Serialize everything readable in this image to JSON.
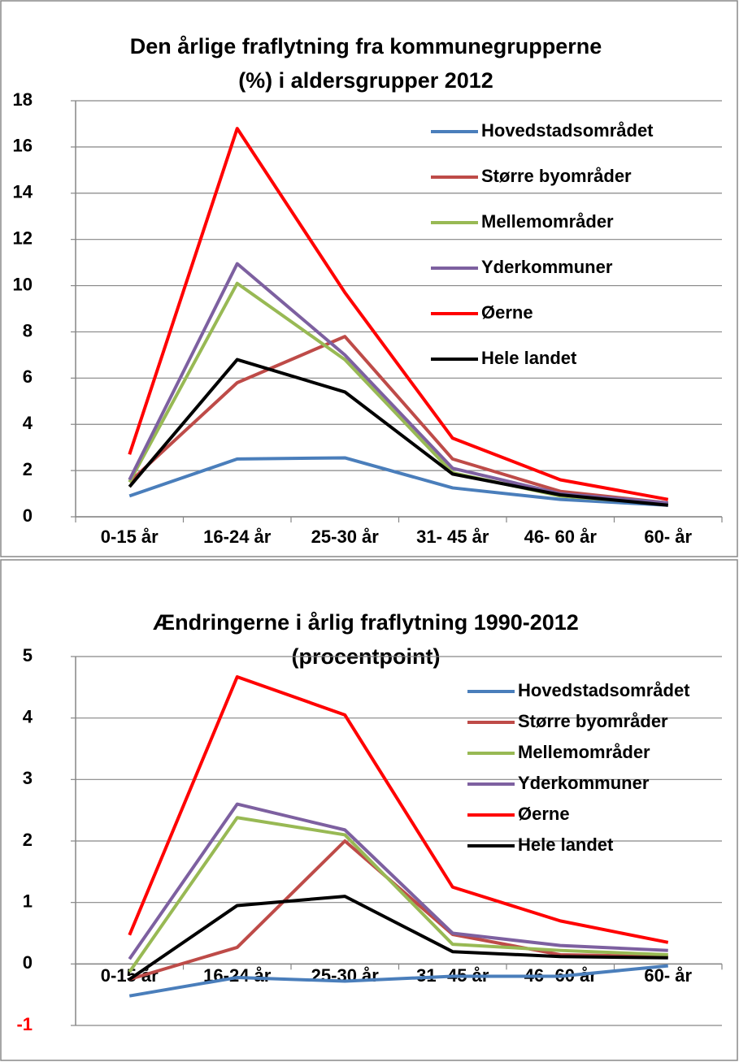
{
  "chart_data": [
    {
      "type": "line",
      "title": [
        "Den årlige fraflytning fra kommunegrupperne",
        "(%) i aldersgrupper 2012"
      ],
      "categories": [
        "0-15 år",
        "16-24 år",
        "25-30 år",
        "31- 45 år",
        "46- 60 år",
        "60- år"
      ],
      "ylim": [
        0,
        18
      ],
      "yticks": [
        0,
        2,
        4,
        6,
        8,
        10,
        12,
        14,
        16,
        18
      ],
      "grid": true,
      "series": [
        {
          "name": "Hovedstadsområdet",
          "color": "#4a7ebb",
          "values": [
            0.9,
            2.5,
            2.55,
            1.25,
            0.75,
            0.5
          ]
        },
        {
          "name": "Større byområder",
          "color": "#be4b48",
          "values": [
            1.5,
            5.8,
            7.8,
            2.5,
            1.1,
            0.6
          ]
        },
        {
          "name": "Mellemområder",
          "color": "#98b954",
          "values": [
            1.5,
            10.1,
            6.8,
            1.9,
            0.9,
            0.55
          ]
        },
        {
          "name": "Yderkommuner",
          "color": "#7d60a0",
          "values": [
            1.6,
            10.95,
            7.0,
            2.1,
            1.0,
            0.6
          ]
        },
        {
          "name": "Øerne",
          "color": "#ff0000",
          "values": [
            2.7,
            16.8,
            9.7,
            3.4,
            1.6,
            0.75
          ]
        },
        {
          "name": "Hele landet",
          "color": "#000000",
          "values": [
            1.3,
            6.8,
            5.4,
            1.85,
            0.95,
            0.5
          ]
        }
      ]
    },
    {
      "type": "line",
      "title": [
        "Ændringerne i årlig fraflytning 1990-2012",
        "(procentpoint)"
      ],
      "categories": [
        "0-15 år",
        "16-24 år",
        "25-30 år",
        "31- 45 år",
        "46- 60 år",
        "60- år"
      ],
      "ylim": [
        -1,
        5
      ],
      "yticks": [
        -1,
        0,
        1,
        2,
        3,
        4,
        5
      ],
      "ytick_colors": [
        "#ff0000",
        "#000000",
        "#000000",
        "#000000",
        "#000000",
        "#000000",
        "#000000"
      ],
      "grid": true,
      "series": [
        {
          "name": "Hovedstadsområdet",
          "color": "#4a7ebb",
          "values": [
            -0.52,
            -0.22,
            -0.28,
            -0.2,
            -0.2,
            -0.03
          ]
        },
        {
          "name": "Større byområder",
          "color": "#be4b48",
          "values": [
            -0.25,
            0.27,
            2.0,
            0.48,
            0.15,
            0.12
          ]
        },
        {
          "name": "Mellemområder",
          "color": "#98b954",
          "values": [
            -0.13,
            2.38,
            2.1,
            0.32,
            0.22,
            0.15
          ]
        },
        {
          "name": "Yderkommuner",
          "color": "#7d60a0",
          "values": [
            0.08,
            2.6,
            2.18,
            0.5,
            0.3,
            0.22
          ]
        },
        {
          "name": "Øerne",
          "color": "#ff0000",
          "values": [
            0.47,
            4.67,
            4.05,
            1.25,
            0.7,
            0.35
          ]
        },
        {
          "name": "Hele landet",
          "color": "#000000",
          "values": [
            -0.25,
            0.95,
            1.1,
            0.2,
            0.12,
            0.1
          ]
        }
      ]
    }
  ]
}
